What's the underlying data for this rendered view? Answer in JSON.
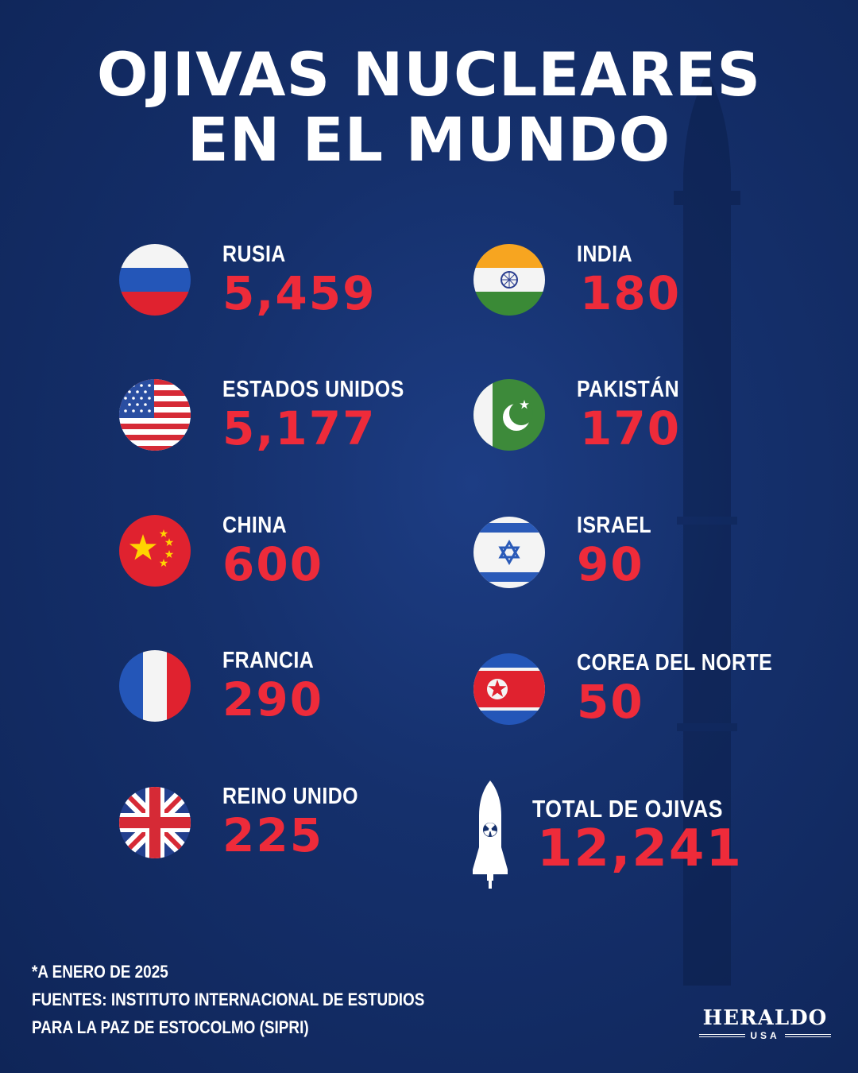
{
  "title": {
    "line1": "OJIVAS NUCLEARES",
    "line2": "EN EL MUNDO"
  },
  "countries": [
    {
      "name": "RUSIA",
      "value": "5,459",
      "flag": "russia-flag-icon"
    },
    {
      "name": "ESTADOS UNIDOS",
      "value": "5,177",
      "flag": "usa-flag-icon"
    },
    {
      "name": "CHINA",
      "value": "600",
      "flag": "china-flag-icon"
    },
    {
      "name": "FRANCIA",
      "value": "290",
      "flag": "france-flag-icon"
    },
    {
      "name": "REINO UNIDO",
      "value": "225",
      "flag": "uk-flag-icon"
    },
    {
      "name": "INDIA",
      "value": "180",
      "flag": "india-flag-icon"
    },
    {
      "name": "PAKISTÁN",
      "value": "170",
      "flag": "pakistan-flag-icon"
    },
    {
      "name": "ISRAEL",
      "value": "90",
      "flag": "israel-flag-icon"
    },
    {
      "name": "COREA DEL NORTE",
      "value": "50",
      "flag": "north-korea-flag-icon"
    }
  ],
  "total": {
    "label": "TOTAL DE OJIVAS",
    "value": "12,241",
    "icon": "nuclear-warhead-icon"
  },
  "footnotes": {
    "date": "*A ENERO DE 2025",
    "source_line1": "FUENTES: INSTITUTO INTERNACIONAL DE ESTUDIOS",
    "source_line2": "PARA LA PAZ DE ESTOCOLMO (SIPRI)"
  },
  "logo": {
    "main": "HERALDO",
    "sub": "USA"
  },
  "colors": {
    "background": "#15306c",
    "value_red": "#ee2b3a",
    "text_white": "#ffffff"
  }
}
